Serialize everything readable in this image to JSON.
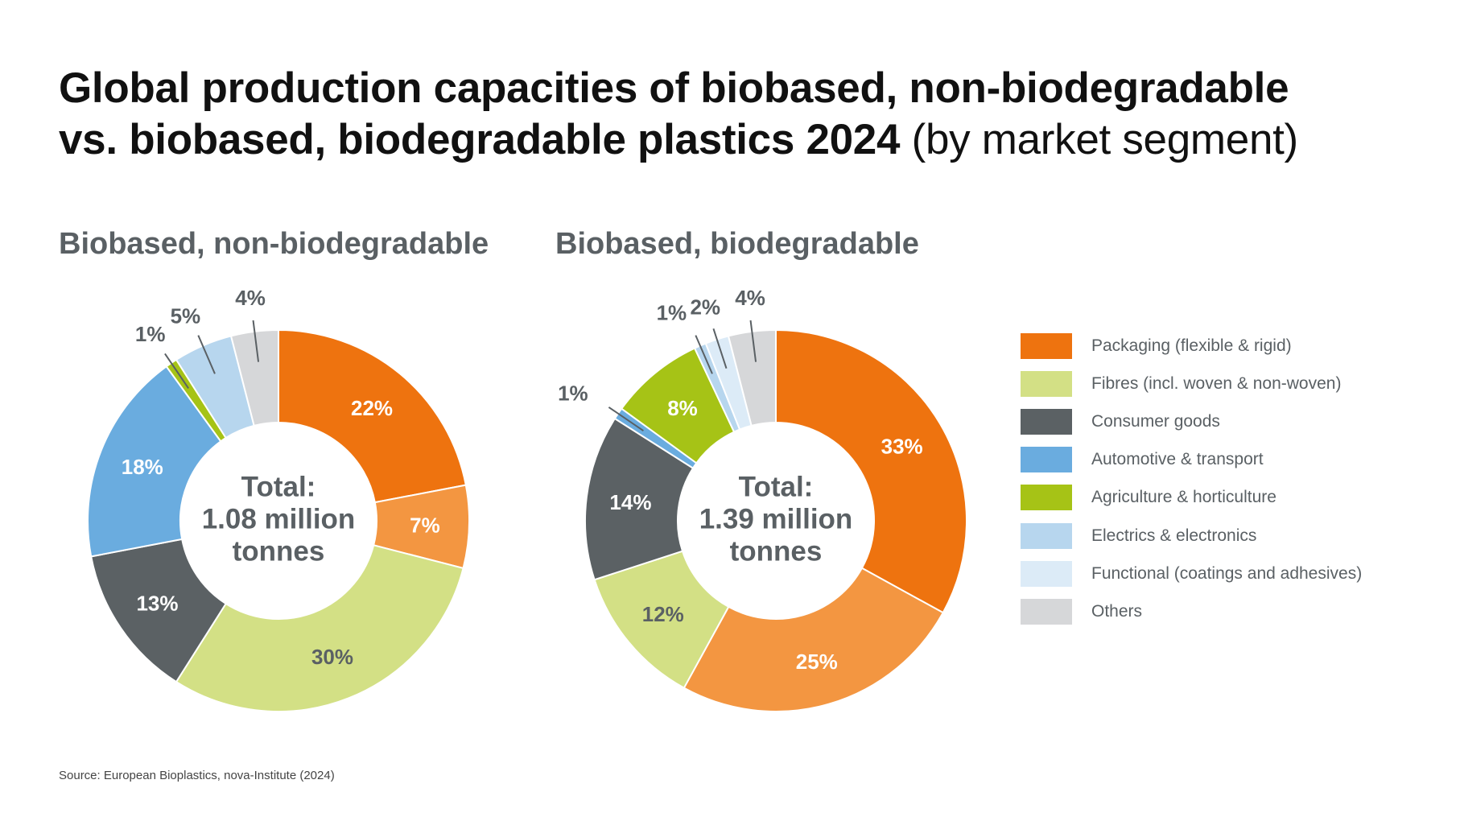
{
  "title": {
    "bold_line1": "Global production capacities of biobased, non-biodegradable",
    "bold_line2": "vs. biobased, biodegradable plastics 2024",
    "light": "(by market segment)"
  },
  "source": "Source: European Bioplastics, nova-Institute (2024)",
  "legend": [
    {
      "label": "Packaging (flexible & rigid)",
      "color": "#ee730f"
    },
    {
      "label": "Fibres (incl. woven & non-woven)",
      "color": "#d3e085"
    },
    {
      "label": "Consumer goods",
      "color": "#5b6164"
    },
    {
      "label": "Automotive & transport",
      "color": "#6aacdf"
    },
    {
      "label": "Agriculture & horticulture",
      "color": "#a6c316"
    },
    {
      "label": "Electrics & electronics",
      "color": "#b7d6ee"
    },
    {
      "label": "Functional (coatings and adhesives)",
      "color": "#dcebf7"
    },
    {
      "label": "Others",
      "color": "#d6d7d9"
    }
  ],
  "chart_data": [
    {
      "type": "pie",
      "title": "Biobased, non-biodegradable",
      "center_text": [
        "Total:",
        "1.08 million",
        "tonnes"
      ],
      "slices": [
        {
          "category": "Packaging (flexible & rigid)",
          "value": 22,
          "label": "22%",
          "color": "#ee730f"
        },
        {
          "category": "Packaging (flexible & rigid)",
          "value": 7,
          "label": "7%",
          "color": "#f39641"
        },
        {
          "category": "Fibres (incl. woven & non-woven)",
          "value": 30,
          "label": "30%",
          "color": "#d3e085"
        },
        {
          "category": "Consumer goods",
          "value": 13,
          "label": "13%",
          "color": "#5b6164"
        },
        {
          "category": "Automotive & transport",
          "value": 18,
          "label": "18%",
          "color": "#6aacdf"
        },
        {
          "category": "Agriculture & horticulture",
          "value": 1,
          "label": "1%",
          "color": "#a6c316"
        },
        {
          "category": "Electrics & electronics",
          "value": 5,
          "label": "5%",
          "color": "#b7d6ee"
        },
        {
          "category": "Others",
          "value": 4,
          "label": "4%",
          "color": "#d6d7d9"
        }
      ]
    },
    {
      "type": "pie",
      "title": "Biobased, biodegradable",
      "center_text": [
        "Total:",
        "1.39 million",
        "tonnes"
      ],
      "slices": [
        {
          "category": "Packaging (flexible & rigid)",
          "value": 33,
          "label": "33%",
          "color": "#ee730f"
        },
        {
          "category": "Packaging (flexible & rigid)",
          "value": 25,
          "label": "25%",
          "color": "#f39641"
        },
        {
          "category": "Fibres (incl. woven & non-woven)",
          "value": 12,
          "label": "12%",
          "color": "#d3e085"
        },
        {
          "category": "Consumer goods",
          "value": 14,
          "label": "14%",
          "color": "#5b6164"
        },
        {
          "category": "Automotive & transport",
          "value": 1,
          "label": "1%",
          "color": "#6aacdf"
        },
        {
          "category": "Agriculture & horticulture",
          "value": 8,
          "label": "8%",
          "color": "#a6c316"
        },
        {
          "category": "Electrics & electronics",
          "value": 1,
          "label": "1%",
          "color": "#b7d6ee"
        },
        {
          "category": "Functional (coatings and adhesives)",
          "value": 2,
          "label": "2%",
          "color": "#dcebf7"
        },
        {
          "category": "Others",
          "value": 4,
          "label": "4%",
          "color": "#d6d7d9"
        }
      ]
    }
  ]
}
